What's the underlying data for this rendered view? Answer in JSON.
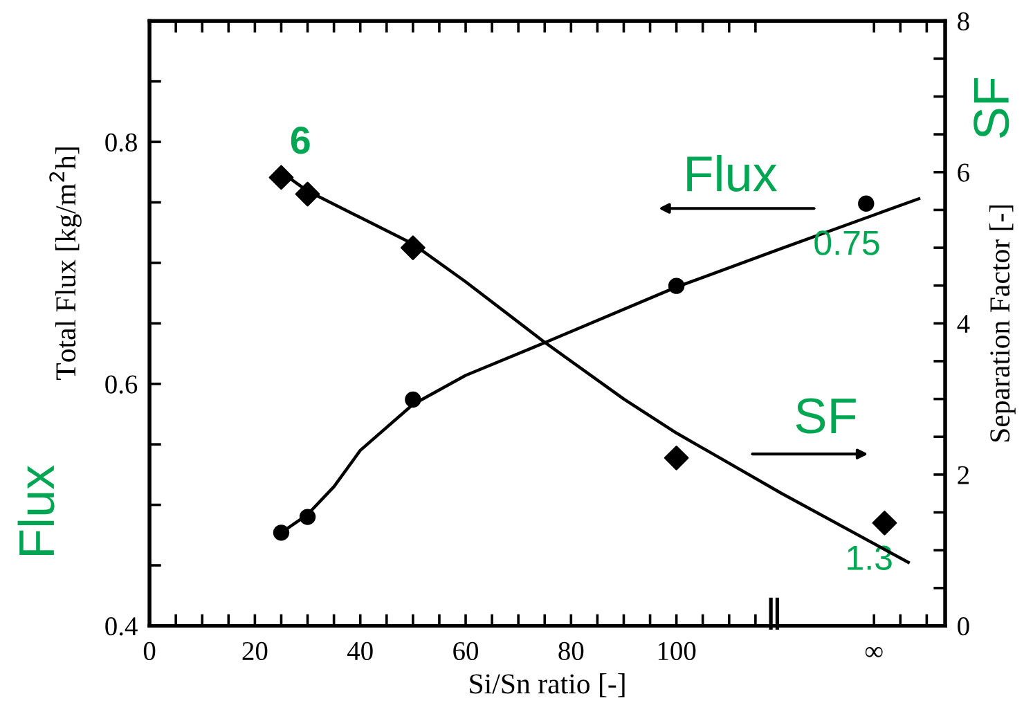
{
  "chart_data": {
    "type": "scatter",
    "xlabel": "Si/Sn ratio [-]",
    "ylabel": "Total Flux [kg/m$^{2}$h]",
    "y2label": "Separation Factor [-]",
    "series": [
      {
        "marker": "circle",
        "color": "#000000",
        "x": [
          25,
          30,
          50,
          100,
          136
        ],
        "values": [
          0.477,
          0.49,
          0.587,
          0.681,
          0.749
        ]
      },
      {
        "marker": "diamond",
        "color": "#000000",
        "axis": "y2",
        "x": [
          25,
          30,
          50,
          100,
          139.5
        ],
        "values": [
          5.93,
          5.71,
          5.0,
          2.22,
          1.36
        ]
      },
      {
        "type": "line",
        "marker": "none",
        "color": "#000000",
        "x": [
          25,
          30,
          35,
          40,
          50,
          60,
          75,
          100,
          120,
          146
        ],
        "values": [
          0.477,
          0.492,
          0.515,
          0.545,
          0.583,
          0.607,
          0.634,
          0.68,
          0.712,
          0.753
        ]
      },
      {
        "type": "line",
        "marker": "none",
        "color": "#000000",
        "axis": "y2",
        "x": [
          25,
          30,
          40,
          50,
          60,
          75,
          90,
          100,
          120,
          144
        ],
        "values": [
          6.0,
          5.75,
          5.4,
          5.05,
          4.55,
          3.75,
          3.0,
          2.55,
          1.75,
          0.84
        ]
      }
    ],
    "xlim": [
      0,
      151
    ],
    "xticks": [
      0,
      {
        "value": 5,
        "label": null
      },
      {
        "value": 10,
        "label": null
      },
      {
        "value": 15,
        "label": null
      },
      20,
      {
        "value": 25,
        "label": null
      },
      {
        "value": 30,
        "label": null
      },
      {
        "value": 35,
        "label": null
      },
      40,
      {
        "value": 45,
        "label": null
      },
      {
        "value": 50,
        "label": null
      },
      {
        "value": 55,
        "label": null
      },
      60,
      {
        "value": 65,
        "label": null
      },
      {
        "value": 70,
        "label": null
      },
      {
        "value": 75,
        "label": null
      },
      80,
      {
        "value": 85,
        "label": null
      },
      {
        "value": 90,
        "label": null
      },
      {
        "value": 95,
        "label": null
      },
      100,
      {
        "value": 105,
        "label": null
      },
      {
        "value": 110,
        "label": null
      },
      {
        "value": 115,
        "label": null
      },
      {
        "value": 137.5,
        "label": "∞"
      },
      {
        "value": 142.5,
        "label": null
      },
      {
        "value": 147.5,
        "label": null
      }
    ],
    "ylim": [
      0.4,
      0.9
    ],
    "yticks": [
      0.4,
      {
        "value": 0.45,
        "label": null
      },
      {
        "value": 0.5,
        "label": null
      },
      {
        "value": 0.55,
        "label": null
      },
      0.6,
      {
        "value": 0.65,
        "label": null
      },
      {
        "value": 0.7,
        "label": null
      },
      {
        "value": 0.75,
        "label": null
      },
      0.8,
      {
        "value": 0.85,
        "label": null
      },
      {
        "value": 0.9,
        "label": null
      }
    ],
    "y2lim": [
      0,
      8
    ],
    "y2ticks": [
      0,
      {
        "value": 0.5,
        "label": null
      },
      {
        "value": 1,
        "label": null
      },
      {
        "value": 1.5,
        "label": null
      },
      2,
      {
        "value": 2.5,
        "label": null
      },
      {
        "value": 3,
        "label": null
      },
      {
        "value": 3.5,
        "label": null
      },
      4,
      {
        "value": 4.5,
        "label": null
      },
      {
        "value": 5,
        "label": null
      },
      {
        "value": 5.5,
        "label": null
      },
      6,
      {
        "value": 6.5,
        "label": null
      },
      {
        "value": 7,
        "label": null
      },
      {
        "value": 7.5,
        "label": null
      },
      8
    ],
    "annotations": [
      {
        "text": "6",
        "x": 25,
        "y": 0.77
      },
      {
        "text": "0.75",
        "x": 136,
        "y": 0.749
      },
      {
        "text": "1.3",
        "x": 139.5,
        "y": 0.476
      },
      "Flux",
      "SF",
      "Flux",
      "SF",
      "‖"
    ],
    "grid": false,
    "legend": false
  }
}
